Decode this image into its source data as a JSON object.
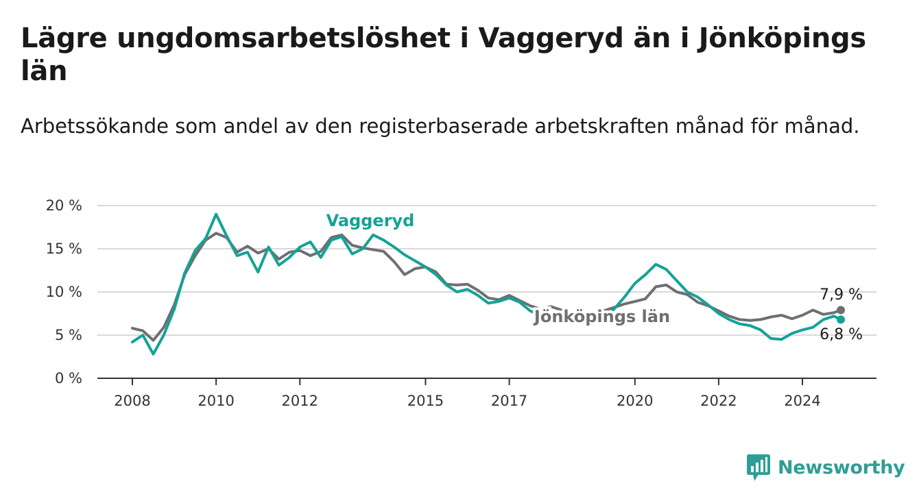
{
  "title": "Lägre ungdomsarbetslöshet i Vaggeryd än i Jönköpings län",
  "subtitle": "Arbetssökande som andel av den registerbaserade arbetskraften månad för månad.",
  "brand": {
    "name": "Newsworthy",
    "color": "#2e9e94"
  },
  "chart_data": {
    "type": "line",
    "title": "Lägre ungdomsarbetslöshet i Vaggeryd än i Jönköpings län",
    "subtitle": "Arbetssökande som andel av den registerbaserade arbetskraften månad för månad.",
    "x_ticks": [
      "2008",
      "2010",
      "2012",
      "2015",
      "2017",
      "2020",
      "2022",
      "2024"
    ],
    "y_ticks": [
      "0 %",
      "5 %",
      "10 %",
      "15 %",
      "20 %"
    ],
    "ylim": [
      0,
      20
    ],
    "grid": true,
    "legend": "inline labels",
    "series": [
      {
        "name": "Jönköpings län",
        "color": "#6e6e73",
        "end_label": "7,9 %",
        "x": [
          "2008-01",
          "2008-04",
          "2008-07",
          "2008-10",
          "2009-01",
          "2009-04",
          "2009-07",
          "2009-10",
          "2010-01",
          "2010-04",
          "2010-07",
          "2010-10",
          "2011-01",
          "2011-04",
          "2011-07",
          "2011-10",
          "2012-01",
          "2012-04",
          "2012-07",
          "2012-10",
          "2013-01",
          "2013-04",
          "2013-07",
          "2013-10",
          "2014-01",
          "2014-04",
          "2014-07",
          "2014-10",
          "2015-01",
          "2015-04",
          "2015-07",
          "2015-10",
          "2016-01",
          "2016-04",
          "2016-07",
          "2016-10",
          "2017-01",
          "2017-04",
          "2017-07",
          "2017-10",
          "2018-01",
          "2018-04",
          "2018-07",
          "2018-10",
          "2019-01",
          "2019-04",
          "2019-07",
          "2019-10",
          "2020-01",
          "2020-04",
          "2020-07",
          "2020-10",
          "2021-01",
          "2021-04",
          "2021-07",
          "2021-10",
          "2022-01",
          "2022-04",
          "2022-07",
          "2022-10",
          "2023-01",
          "2023-04",
          "2023-07",
          "2023-10",
          "2024-01",
          "2024-04",
          "2024-07",
          "2024-10",
          "2024-12"
        ],
        "values": [
          5.8,
          5.5,
          4.4,
          5.9,
          8.5,
          12.0,
          14.2,
          16.0,
          16.8,
          16.3,
          14.6,
          15.3,
          14.5,
          15.0,
          13.8,
          14.6,
          14.8,
          14.2,
          14.7,
          16.3,
          16.6,
          15.4,
          15.1,
          14.9,
          14.7,
          13.5,
          12.0,
          12.7,
          12.9,
          12.3,
          10.9,
          10.8,
          10.9,
          10.2,
          9.3,
          9.1,
          9.6,
          9.0,
          8.4,
          8.0,
          8.3,
          7.9,
          7.5,
          7.2,
          7.3,
          7.8,
          8.2,
          8.6,
          8.9,
          9.2,
          10.6,
          10.8,
          10.0,
          9.7,
          8.8,
          8.4,
          7.8,
          7.2,
          6.8,
          6.7,
          6.8,
          7.1,
          7.3,
          6.9,
          7.3,
          7.9,
          7.4,
          7.6,
          7.9
        ]
      },
      {
        "name": "Vaggeryd",
        "color": "#13a396",
        "end_label": "6,8 %",
        "x": [
          "2008-01",
          "2008-04",
          "2008-07",
          "2008-10",
          "2009-01",
          "2009-04",
          "2009-07",
          "2009-10",
          "2010-01",
          "2010-04",
          "2010-07",
          "2010-10",
          "2011-01",
          "2011-04",
          "2011-07",
          "2011-10",
          "2012-01",
          "2012-04",
          "2012-07",
          "2012-10",
          "2013-01",
          "2013-04",
          "2013-07",
          "2013-10",
          "2014-01",
          "2014-04",
          "2014-07",
          "2014-10",
          "2015-01",
          "2015-04",
          "2015-07",
          "2015-10",
          "2016-01",
          "2016-04",
          "2016-07",
          "2016-10",
          "2017-01",
          "2017-04",
          "2017-07",
          "2017-10",
          "2018-01",
          "2018-04",
          "2018-07",
          "2018-10",
          "2019-01",
          "2019-04",
          "2019-07",
          "2019-10",
          "2020-01",
          "2020-04",
          "2020-07",
          "2020-10",
          "2021-01",
          "2021-04",
          "2021-07",
          "2021-10",
          "2022-01",
          "2022-04",
          "2022-07",
          "2022-10",
          "2023-01",
          "2023-04",
          "2023-07",
          "2023-10",
          "2024-01",
          "2024-04",
          "2024-07",
          "2024-10",
          "2024-12"
        ],
        "values": [
          4.2,
          5.0,
          2.8,
          5.0,
          8.0,
          12.2,
          14.8,
          16.2,
          19.0,
          16.5,
          14.2,
          14.6,
          12.3,
          15.2,
          13.1,
          14.0,
          15.2,
          15.8,
          14.0,
          16.0,
          16.4,
          14.4,
          15.0,
          16.6,
          16.0,
          15.2,
          14.3,
          13.6,
          12.9,
          12.0,
          10.8,
          10.0,
          10.3,
          9.6,
          8.7,
          8.9,
          9.3,
          8.8,
          7.8,
          7.3,
          7.7,
          7.2,
          6.8,
          6.6,
          6.5,
          7.0,
          8.0,
          9.4,
          11.0,
          12.0,
          13.2,
          12.6,
          11.3,
          10.0,
          9.4,
          8.5,
          7.5,
          6.8,
          6.3,
          6.1,
          5.6,
          4.6,
          4.5,
          5.2,
          5.6,
          5.9,
          6.8,
          7.2,
          6.8
        ]
      }
    ]
  }
}
